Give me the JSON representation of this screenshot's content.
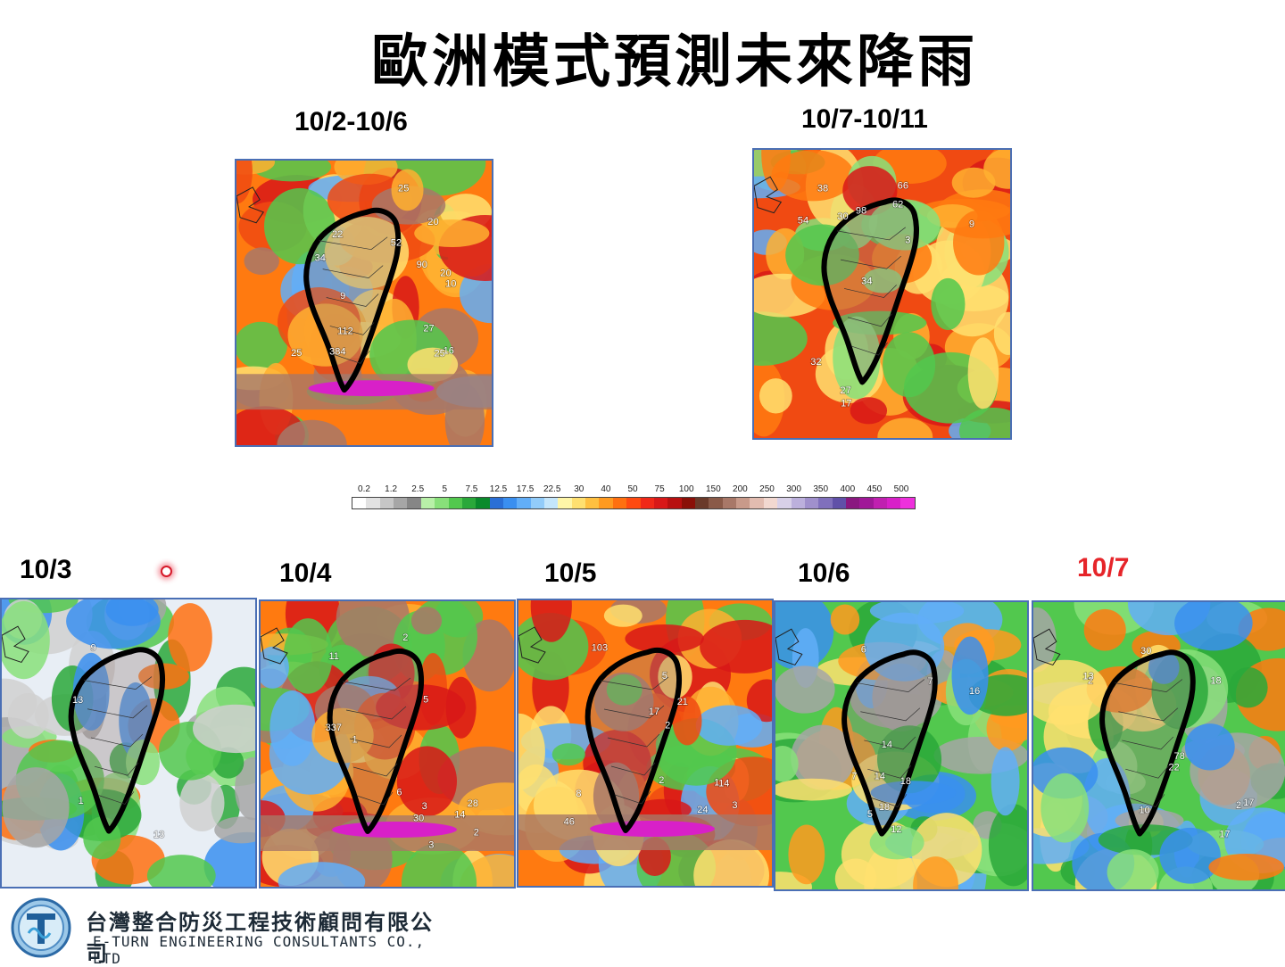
{
  "title": "歐洲模式預測未來降雨",
  "periods": [
    {
      "label": "10/2-10/6",
      "values": [
        "22",
        "20",
        "52",
        "10",
        "9",
        "16",
        "112",
        "25",
        "25",
        "20",
        "34",
        "27",
        "90",
        "384",
        "25"
      ]
    },
    {
      "label": "10/7-10/11",
      "values": [
        "62",
        "66",
        "9",
        "98",
        "27",
        "54",
        "38",
        "34",
        "3",
        "30",
        "17",
        "32"
      ]
    }
  ],
  "days": [
    {
      "label": "10/3",
      "highlight": false,
      "values": [
        "13",
        "9",
        "1",
        "13"
      ]
    },
    {
      "label": "10/4",
      "highlight": false,
      "values": [
        "14",
        "28",
        "6",
        "2",
        "3",
        "5",
        "3",
        "2",
        "11",
        "30",
        "337",
        "1"
      ]
    },
    {
      "label": "10/5",
      "highlight": false,
      "values": [
        "8",
        "2",
        "1",
        "3",
        "5",
        "24",
        "17",
        "21",
        "14",
        "46",
        "103",
        "2"
      ]
    },
    {
      "label": "10/6",
      "highlight": false,
      "values": [
        "14",
        "6",
        "7",
        "14",
        "18",
        "16",
        "5",
        "18",
        "7",
        "12"
      ]
    },
    {
      "label": "10/7",
      "highlight": true,
      "values": [
        "78",
        "2",
        "22",
        "18",
        "30",
        "17",
        "2",
        "13",
        "10",
        "17"
      ]
    }
  ],
  "scale": {
    "ticks": [
      "0.2",
      "1.2",
      "2.5",
      "5",
      "7.5",
      "12.5",
      "17.5",
      "22.5",
      "30",
      "40",
      "50",
      "75",
      "100",
      "150",
      "200",
      "250",
      "300",
      "350",
      "400",
      "450",
      "500"
    ],
    "colors": [
      "#ffffff",
      "#e2e2e2",
      "#c6c6c6",
      "#a6a6a6",
      "#868686",
      "#b8f0a8",
      "#88e07a",
      "#52c84e",
      "#2aa83a",
      "#0a8a2c",
      "#2a6fd6",
      "#3a8ff0",
      "#62aef8",
      "#92ccfa",
      "#c4e6fc",
      "#fff6a8",
      "#ffe070",
      "#ffc040",
      "#ff9a20",
      "#ff7010",
      "#ff4a10",
      "#f02818",
      "#d81818",
      "#b81010",
      "#8a1008",
      "#6a3a2a",
      "#8a5a48",
      "#a87868",
      "#c89a8a",
      "#e2bcb0",
      "#f2d8d0",
      "#d8d0e8",
      "#bcb0dc",
      "#a090cc",
      "#8070bc",
      "#6050a8",
      "#8a1880",
      "#a01898",
      "#c020b0",
      "#d820c8",
      "#ee30dc"
    ]
  },
  "colors": {
    "map_border": "#4a6fb5",
    "highlight_label": "#e6252a",
    "outline": "#000000"
  },
  "company": {
    "name_zh": "台灣整合防災工程技術顧問有限公司",
    "name_en": "E-TURN ENGINEERING CONSULTANTS CO., LTD"
  }
}
